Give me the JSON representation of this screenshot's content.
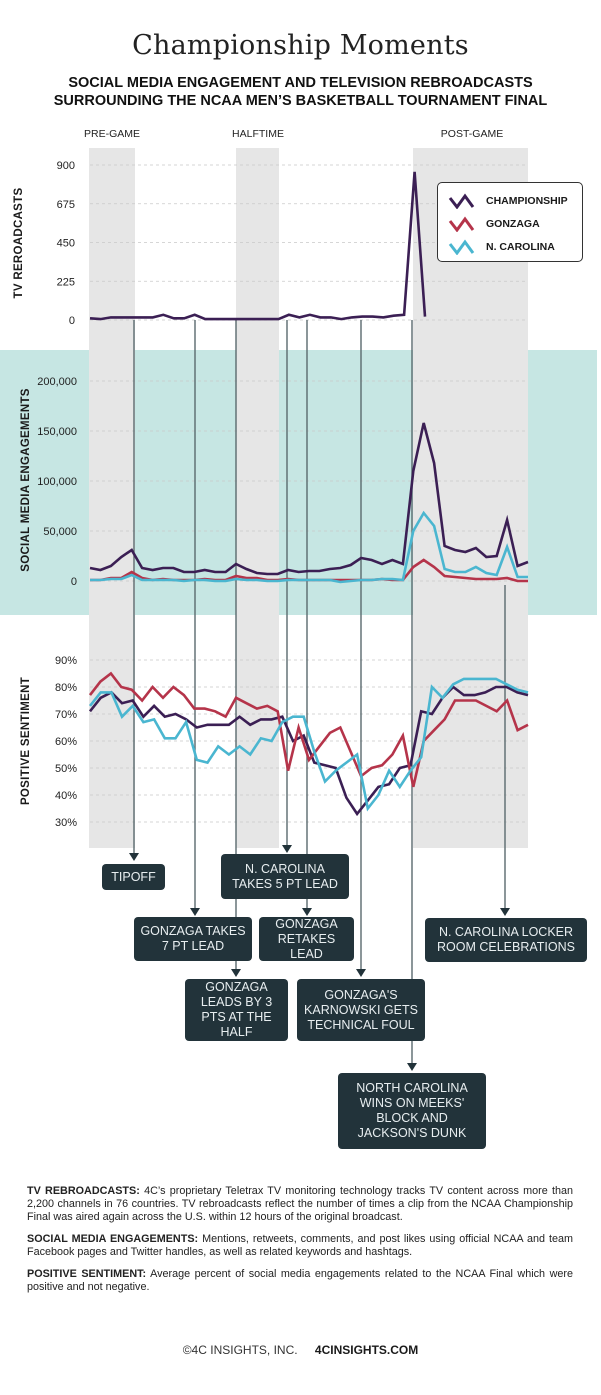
{
  "header": {
    "title": "Championship Moments",
    "subtitle_line1": "SOCIAL MEDIA ENGAGEMENT AND TELEVISION REBROADCASTS",
    "subtitle_line2": "SURROUNDING THE NCAA MEN’S BASKETBALL TOURNAMENT FINAL"
  },
  "phases": [
    "PRE-GAME",
    "HALFTIME",
    "POST-GAME"
  ],
  "legend": [
    {
      "label": "CHAMPIONSHIP",
      "color": "#3b1f54"
    },
    {
      "label": "GONZAGA",
      "color": "#b5344a"
    },
    {
      "label": "N. CAROLINA",
      "color": "#4ab6d0"
    }
  ],
  "colors": {
    "teal_band": "#c6e6e3",
    "phase_shade": "#e6e6e6",
    "annotation_bg": "#22333a"
  },
  "chart_data": [
    {
      "type": "line",
      "title": "TV REROADCASTS",
      "ylabel": "TV REROADCASTS",
      "yticks": [
        "900",
        "675",
        "450",
        "225",
        "0"
      ],
      "ylim": [
        0,
        900
      ],
      "grid": true,
      "series": [
        {
          "name": "CHAMPIONSHIP",
          "values": [
            10,
            5,
            15,
            15,
            15,
            15,
            15,
            30,
            10,
            10,
            30,
            5,
            5,
            5,
            5,
            5,
            5,
            5,
            5,
            30,
            15,
            30,
            15,
            15,
            5,
            15,
            20,
            20,
            15,
            25,
            30,
            860,
            20
          ]
        }
      ]
    },
    {
      "type": "line",
      "title": "SOCIAL MEDIA ENGAGEMENTS",
      "ylabel": "SOCIAL MEDIA ENGAGEMENTS",
      "yticks": [
        "200,000",
        "150,000",
        "100,000",
        "50,000",
        "0"
      ],
      "ylim": [
        0,
        200000
      ],
      "grid": true,
      "series": [
        {
          "name": "CHAMPIONSHIP",
          "values": [
            13000,
            11000,
            15000,
            24000,
            31000,
            13000,
            11000,
            13000,
            13000,
            9000,
            9000,
            11000,
            9000,
            9000,
            17000,
            12000,
            8000,
            7000,
            7000,
            11000,
            9000,
            10000,
            10000,
            12000,
            13000,
            16000,
            23000,
            21000,
            17000,
            21000,
            17000,
            110000,
            158000,
            118000,
            35000,
            31000,
            29000,
            33000,
            24000,
            25000,
            61000,
            15000,
            19000
          ]
        },
        {
          "name": "GONZAGA",
          "values": [
            1000,
            1000,
            3000,
            3000,
            9000,
            3000,
            1000,
            2000,
            1000,
            1000,
            1000,
            2000,
            1000,
            1000,
            5000,
            3000,
            3000,
            1000,
            1000,
            2000,
            1000,
            1000,
            1000,
            1000,
            1000,
            1000,
            1000,
            1000,
            2000,
            1000,
            1000,
            14000,
            21000,
            14000,
            5000,
            4000,
            3000,
            2000,
            2000,
            2000,
            3000,
            0,
            0
          ]
        },
        {
          "name": "N. CAROLINA",
          "values": [
            1000,
            1000,
            2000,
            2000,
            6000,
            1000,
            1000,
            1000,
            1000,
            0,
            1000,
            1000,
            0,
            0,
            2000,
            1000,
            1000,
            0,
            0,
            1000,
            1000,
            1000,
            1000,
            1000,
            -1000,
            0,
            1000,
            1000,
            2000,
            2000,
            1000,
            50000,
            68000,
            55000,
            12000,
            9000,
            9000,
            14000,
            8000,
            6000,
            34000,
            4000,
            4000
          ]
        }
      ]
    },
    {
      "type": "line",
      "title": "POSITIVE SENTIMENT",
      "ylabel": "POSITIVE SENTIMENT",
      "yticks": [
        "90%",
        "80%",
        "70%",
        "60%",
        "50%",
        "40%",
        "30%"
      ],
      "ylim": [
        25,
        90
      ],
      "grid": true,
      "series": [
        {
          "name": "CHAMPIONSHIP",
          "values": [
            71,
            76,
            78,
            74,
            75,
            69,
            73,
            69,
            70,
            68,
            65,
            66,
            66,
            66,
            69,
            66,
            68,
            68,
            69,
            60,
            62,
            52,
            51,
            50,
            39,
            33,
            38,
            43,
            44,
            50,
            51,
            71,
            70,
            76,
            80,
            77,
            77,
            78,
            80,
            80,
            78,
            77
          ]
        },
        {
          "name": "GONZAGA",
          "values": [
            77,
            82,
            85,
            80,
            79,
            75,
            80,
            76,
            80,
            77,
            72,
            72,
            71,
            69,
            76,
            74,
            72,
            73,
            71,
            49,
            65,
            53,
            58,
            63,
            65,
            56,
            47,
            50,
            51,
            55,
            62,
            43,
            60,
            64,
            68,
            75,
            75,
            75,
            73,
            71,
            75,
            64,
            66
          ]
        },
        {
          "name": "N. CAROLINA",
          "values": [
            73,
            78,
            78,
            69,
            73,
            67,
            68,
            61,
            61,
            67,
            53,
            52,
            58,
            55,
            58,
            55,
            61,
            60,
            67,
            69,
            69,
            56,
            45,
            49,
            52,
            55,
            35,
            40,
            49,
            43,
            49,
            54,
            80,
            76,
            81,
            83,
            83,
            83,
            83,
            81,
            79,
            78
          ]
        }
      ]
    }
  ],
  "annotations": [
    {
      "label": "TIPOFF"
    },
    {
      "label": "GONZAGA TAKES 7 PT LEAD"
    },
    {
      "label": "GONZAGA LEADS BY 3 PTS AT THE HALF"
    },
    {
      "label": "N. CAROLINA TAKES 5 PT LEAD"
    },
    {
      "label": "GONZAGA RETAKES LEAD"
    },
    {
      "label": "GONZAGA'S KARNOWSKI GETS TECHNICAL FOUL"
    },
    {
      "label": "NORTH CAROLINA WINS ON MEEKS' BLOCK AND JACKSON'S DUNK"
    },
    {
      "label": "N. CAROLINA LOCKER ROOM CELEBRATIONS"
    }
  ],
  "notes": [
    {
      "term": "TV REBROADCASTS:",
      "text": " 4C’s proprietary Teletrax TV monitoring technology tracks TV content across more than 2,200 channels in 76 countries. TV rebroadcasts reflect the number of times a clip from the NCAA Championship Final was aired again across the U.S. within 12 hours of the original broadcast."
    },
    {
      "term": "SOCIAL MEDIA ENGAGEMENTS:",
      "text": " Mentions, retweets, comments, and post likes using official NCAA and team Facebook pages and Twitter handles, as well as related keywords and hashtags."
    },
    {
      "term": "POSITIVE SENTIMENT:",
      "text": " Average percent of social media engagements related to the NCAA Final which were positive and not negative."
    }
  ],
  "footer": {
    "copyright": "©4C INSIGHTS, INC.",
    "website": "4CINSIGHTS.COM"
  }
}
